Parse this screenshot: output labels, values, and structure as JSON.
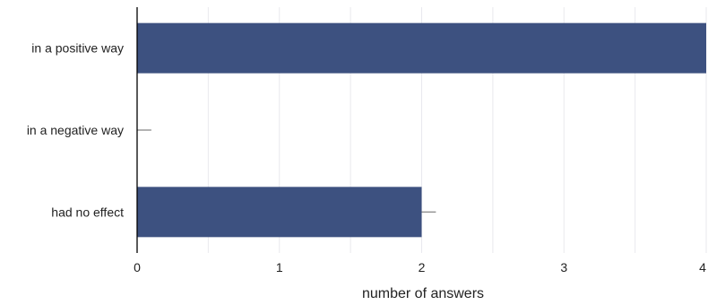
{
  "chart_data": {
    "type": "bar",
    "orientation": "horizontal",
    "categories": [
      "in a positive way",
      "in a negative way",
      "had no effect"
    ],
    "values": [
      4,
      0,
      2
    ],
    "error_upper": [
      4,
      0.1,
      2.1
    ],
    "xlabel": "number of answers",
    "ylabel": "",
    "xlim": [
      0,
      4
    ],
    "x_ticks": [
      0,
      1,
      2,
      3,
      4
    ],
    "grid": "vertical",
    "bar_color": "#3d5180"
  }
}
